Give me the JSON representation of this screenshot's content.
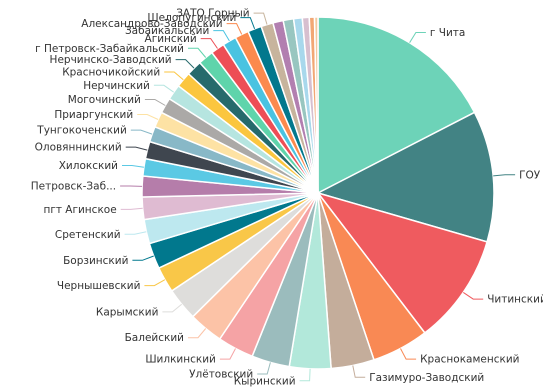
{
  "chart_data": {
    "type": "pie",
    "legend": "none",
    "slices": [
      {
        "label": "г Чита",
        "value": 55.0,
        "color": "#6dd3b8"
      },
      {
        "label": "ГОУ",
        "value": 38.0,
        "color": "#428384"
      },
      {
        "label": "Читинский",
        "value": 32.0,
        "color": "#ef5b5f"
      },
      {
        "label": "Краснокаменский",
        "value": 16.5,
        "color": "#f98954"
      },
      {
        "label": "Газимуро-Заводский",
        "value": 12.5,
        "color": "#c4ad9b"
      },
      {
        "label": "Кыринский",
        "value": 12.0,
        "color": "#b2e8da"
      },
      {
        "label": "Улётовский",
        "value": 11.0,
        "color": "#9bbcbd"
      },
      {
        "label": "Шилкинский",
        "value": 10.5,
        "color": "#f5a3a5"
      },
      {
        "label": "Балейский",
        "value": 10.0,
        "color": "#fcc3a7"
      },
      {
        "label": "Карымский",
        "value": 9.5,
        "color": "#dedddb"
      },
      {
        "label": "Чернышевский",
        "value": 7.5,
        "color": "#f9c748"
      },
      {
        "label": "Борзинский",
        "value": 7.5,
        "color": "#01788d"
      },
      {
        "label": "Сретенский",
        "value": 7.0,
        "color": "#bde8ef"
      },
      {
        "label": "пгт Агинское",
        "value": 6.5,
        "color": "#dfbbd2"
      },
      {
        "label": "Петровск-Заб...",
        "value": 6.0,
        "color": "#b57daa"
      },
      {
        "label": "Хилокский",
        "value": 5.0,
        "color": "#5bc9e4"
      },
      {
        "label": "Оловяннинский",
        "value": 5.0,
        "color": "#3f464f"
      },
      {
        "label": "Тунгокоченский",
        "value": 4.5,
        "color": "#88b8c7"
      },
      {
        "label": "Приаргунский",
        "value": 4.5,
        "color": "#fde2a4"
      },
      {
        "label": "Могочинский",
        "value": 4.5,
        "color": "#aba9a7"
      },
      {
        "label": "Нерчинский",
        "value": 4.5,
        "color": "#b6e5e0"
      },
      {
        "label": "Красночикойский",
        "value": 4.5,
        "color": "#fbc63f"
      },
      {
        "label": "Нерчинско-Заводский",
        "value": 4.5,
        "color": "#266a6c"
      },
      {
        "label": "г Петровск-Забайкальский",
        "value": 4.5,
        "color": "#5fd4ab"
      },
      {
        "label": "Агинский",
        "value": 4.0,
        "color": "#ed4e56"
      },
      {
        "label": "Забайкальский",
        "value": 4.0,
        "color": "#4ac3e1"
      },
      {
        "label": "Александрово-Заводский",
        "value": 4.0,
        "color": "#fb8a4e"
      },
      {
        "label": "Шелопугинский",
        "value": 4.0,
        "color": "#02788d"
      },
      {
        "label": "ЗАТО Горный",
        "value": 3.5,
        "color": "#c7b49d"
      },
      {
        "label": "",
        "value": 3.0,
        "color": "#b27fb0"
      },
      {
        "label": "",
        "value": 3.0,
        "color": "#98c6c0"
      },
      {
        "label": "",
        "value": 2.5,
        "color": "#a8d8ec"
      },
      {
        "label": "",
        "value": 2.0,
        "color": "#d7bfcf"
      },
      {
        "label": "",
        "value": 1.5,
        "color": "#f2a774"
      },
      {
        "label": "",
        "value": 1.0,
        "color": "#f4c8a0"
      }
    ]
  }
}
